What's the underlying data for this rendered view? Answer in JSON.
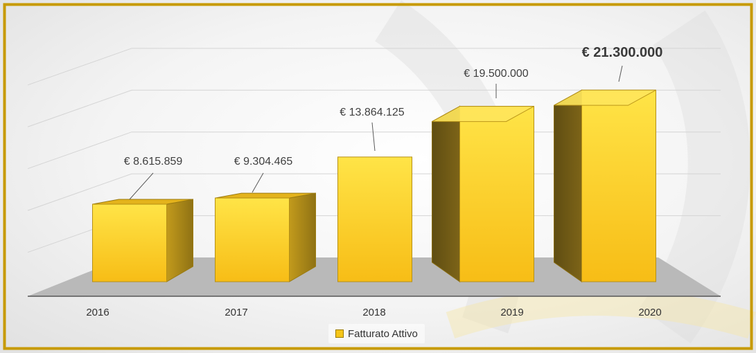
{
  "chart_data": {
    "type": "bar",
    "title": "",
    "xlabel": "",
    "ylabel": "",
    "categories": [
      "2016",
      "2017",
      "2018",
      "2019",
      "2020"
    ],
    "series": [
      {
        "name": "Fatturato Attivo",
        "values": [
          8615859,
          9304465,
          13864125,
          19500000,
          21300000
        ]
      }
    ],
    "data_labels": [
      "€ 8.615.859",
      "€ 9.304.465",
      "€ 13.864.125",
      "€ 19.500.000",
      "€ 21.300.000"
    ],
    "highlighted_label_index": 4,
    "ylim": [
      0,
      25000000
    ],
    "grid": true,
    "style": "3d-column",
    "legend_position": "bottom",
    "colors": {
      "bar_front": "#fcc928",
      "bar_side": "#b08a10",
      "floor": "#b9b9b9",
      "frame": "#c79a00",
      "gridline": "#d4d4d4"
    }
  },
  "legend": {
    "label": "Fatturato Attivo"
  }
}
